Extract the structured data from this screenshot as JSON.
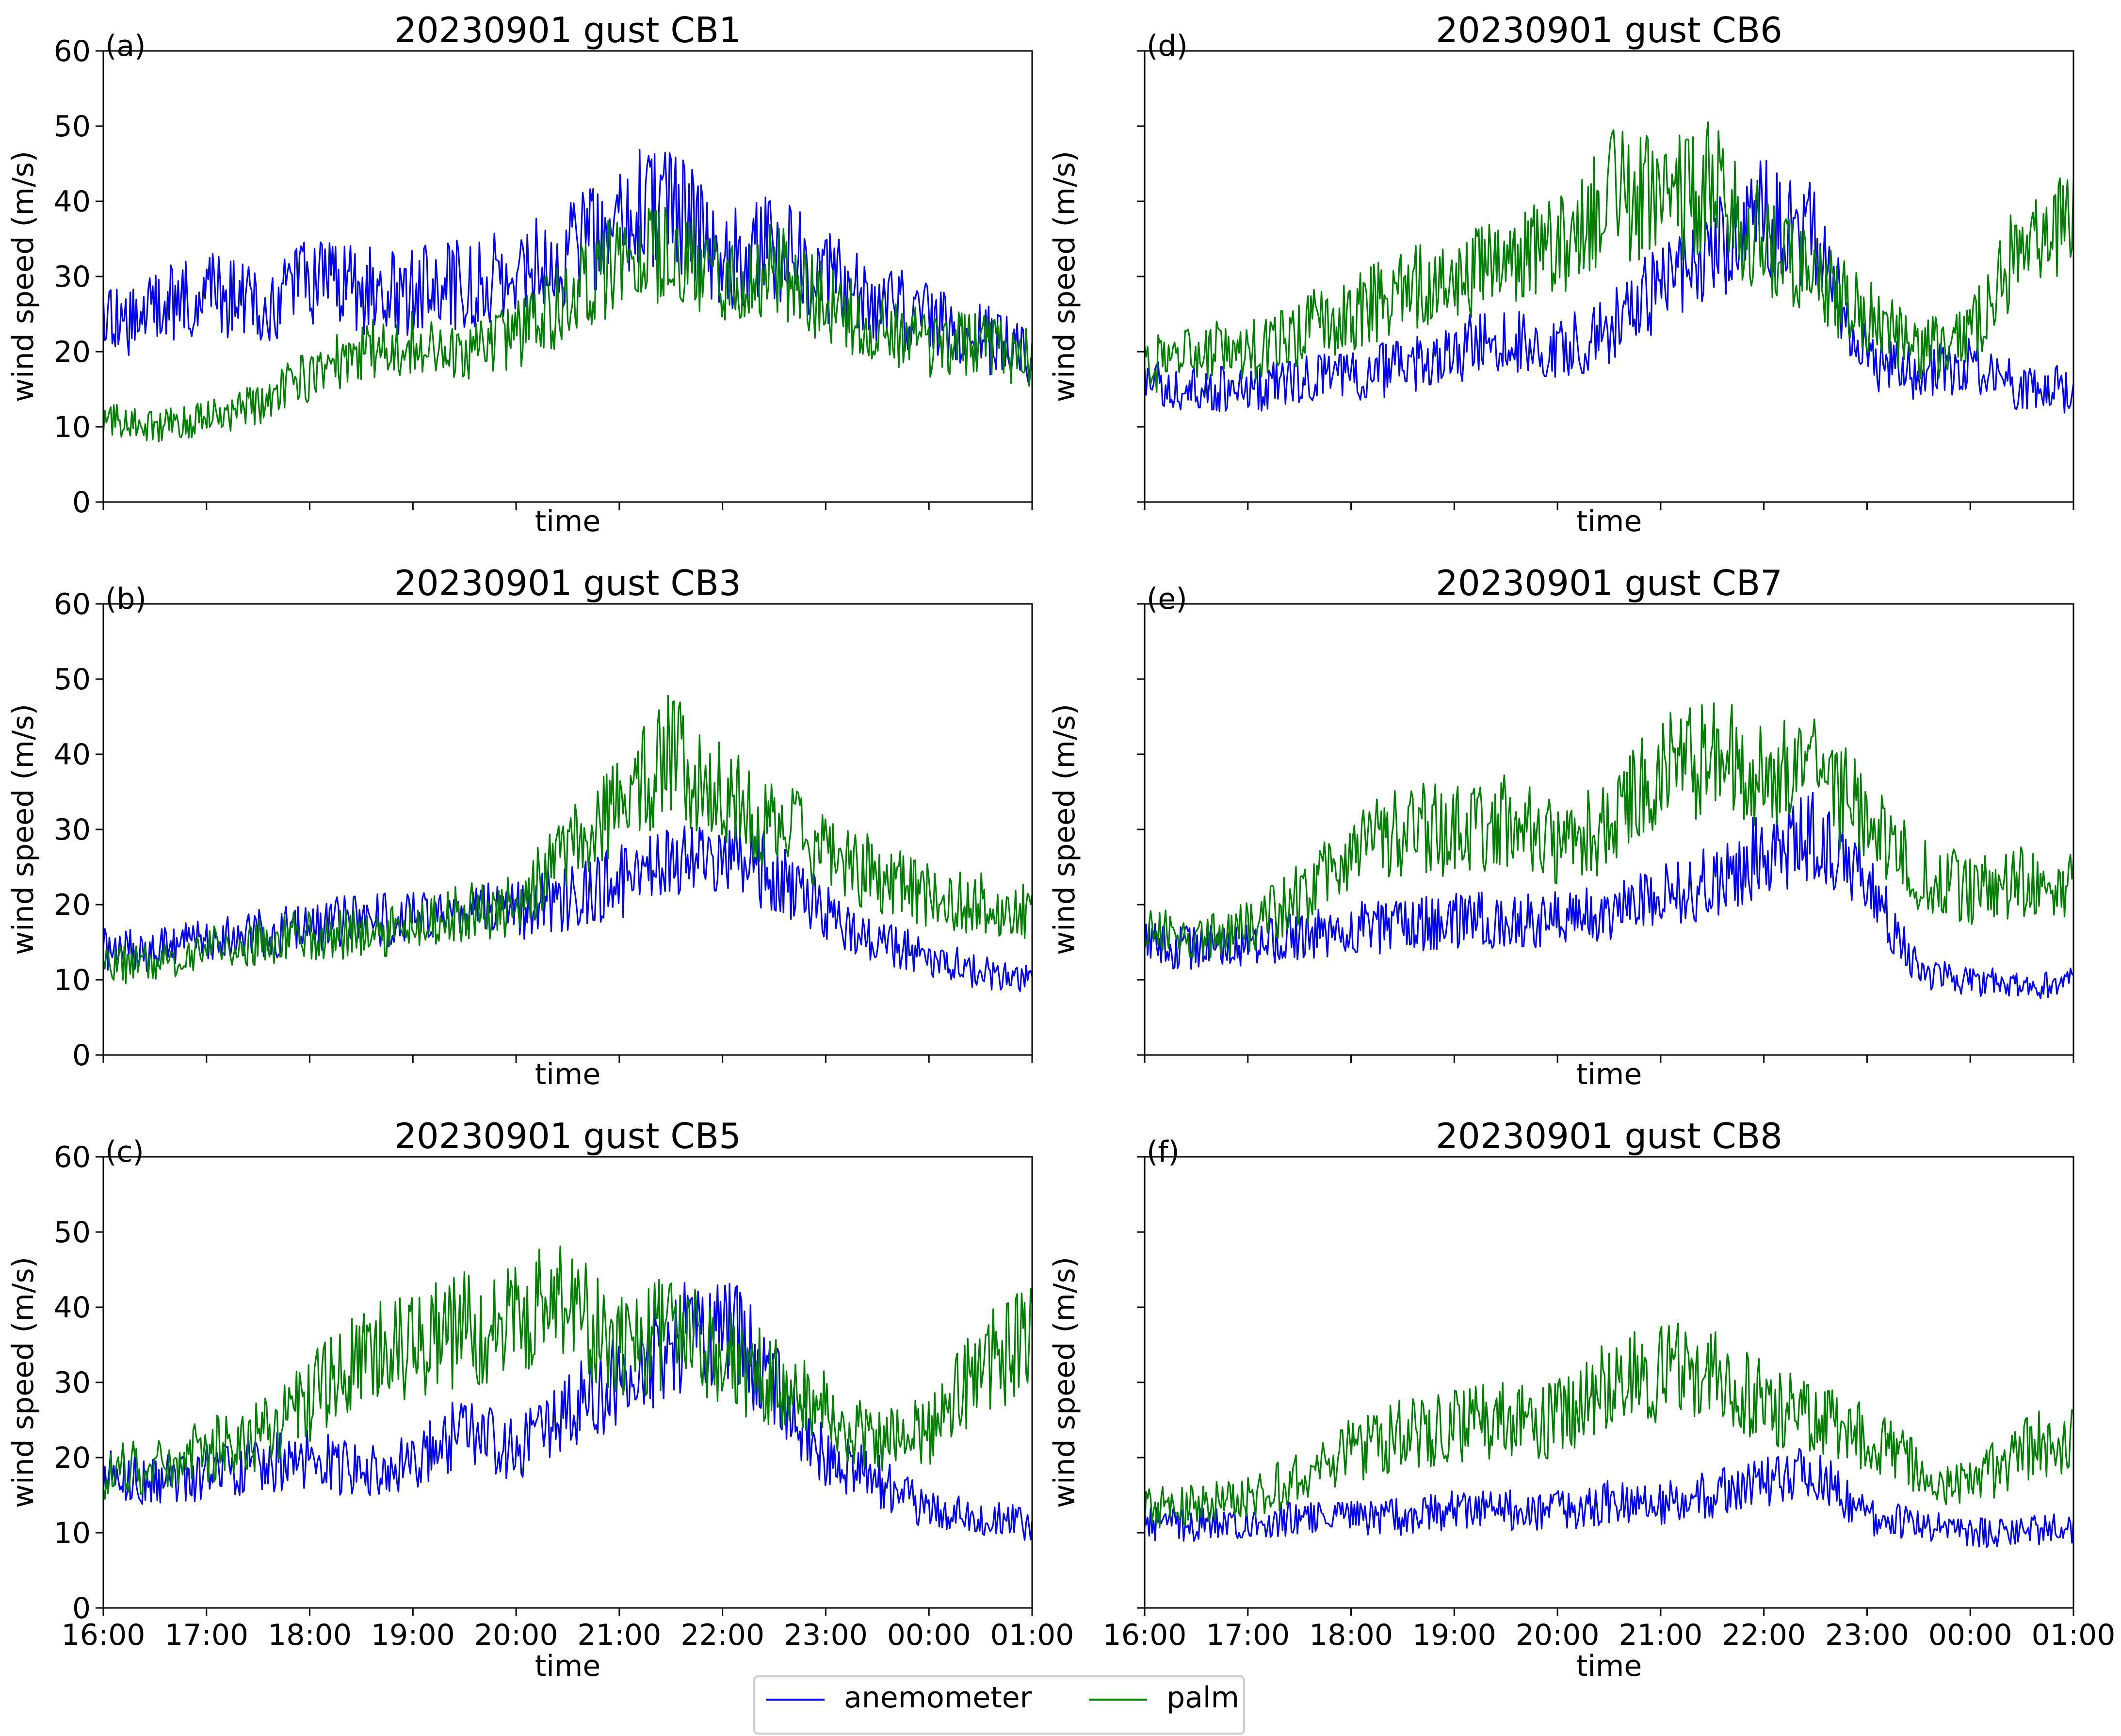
{
  "figure": {
    "legend": {
      "entries": [
        {
          "label": "anemometer",
          "color": "#0000ff"
        },
        {
          "label": "palm",
          "color": "#008000"
        }
      ],
      "placement": "bottom-center"
    }
  },
  "chart_data": [
    {
      "panel": "(a)",
      "type": "line",
      "title": "20230901 gust CB1",
      "xlabel": "time",
      "ylabel": "wind speed (m/s)",
      "ylim": [
        0,
        60
      ],
      "yticks": [
        "0",
        "10",
        "20",
        "30",
        "40",
        "50",
        "60"
      ],
      "xticks": [
        "16:00",
        "17:00",
        "18:00",
        "19:00",
        "20:00",
        "21:00",
        "22:00",
        "23:00",
        "00:00",
        "01:00"
      ],
      "show_xtick_labels": false,
      "show_ytick_labels": true,
      "x_hours": [
        0,
        0.5,
        1,
        1.5,
        2,
        2.5,
        3,
        3.5,
        4,
        4.5,
        5,
        5.5,
        6,
        6.5,
        7,
        7.5,
        8,
        8.5,
        9
      ],
      "series": [
        {
          "name": "anemometer",
          "color": "#0000ff",
          "values": [
            23,
            26,
            28,
            26,
            29,
            28,
            28,
            29,
            30,
            33,
            38,
            40,
            32,
            34,
            30,
            27,
            24,
            22,
            19
          ]
        },
        {
          "name": "palm",
          "color": "#008000",
          "values": [
            11,
            10,
            11,
            13,
            17,
            20,
            21,
            19,
            22,
            27,
            32,
            33,
            29,
            31,
            26,
            23,
            21,
            21,
            19
          ]
        }
      ]
    },
    {
      "panel": "(b)",
      "type": "line",
      "title": "20230901 gust CB3",
      "xlabel": "time",
      "ylabel": "wind speed (m/s)",
      "ylim": [
        0,
        60
      ],
      "yticks": [
        "0",
        "10",
        "20",
        "30",
        "40",
        "50",
        "60"
      ],
      "xticks": [
        "16:00",
        "17:00",
        "18:00",
        "19:00",
        "20:00",
        "21:00",
        "22:00",
        "23:00",
        "00:00",
        "01:00"
      ],
      "show_xtick_labels": false,
      "show_ytick_labels": true,
      "x_hours": [
        0,
        0.5,
        1,
        1.5,
        2,
        2.5,
        3,
        3.5,
        4,
        4.5,
        5,
        5.5,
        6,
        6.5,
        7,
        7.5,
        8,
        8.5,
        9
      ],
      "series": [
        {
          "name": "anemometer",
          "color": "#0000ff",
          "values": [
            14,
            14,
            15,
            16,
            17,
            18,
            18,
            19,
            19,
            21,
            23,
            25,
            27,
            24,
            19,
            15,
            13,
            11,
            10
          ]
        },
        {
          "name": "palm",
          "color": "#008000",
          "values": [
            12,
            12,
            14,
            15,
            16,
            16,
            17,
            19,
            20,
            27,
            34,
            40,
            34,
            31,
            27,
            24,
            21,
            20,
            19
          ]
        }
      ]
    },
    {
      "panel": "(c)",
      "type": "line",
      "title": "20230901 gust CB5",
      "xlabel": "time",
      "ylabel": "wind speed (m/s)",
      "ylim": [
        0,
        60
      ],
      "yticks": [
        "0",
        "10",
        "20",
        "30",
        "40",
        "50",
        "60"
      ],
      "xticks": [
        "16:00",
        "17:00",
        "18:00",
        "19:00",
        "20:00",
        "21:00",
        "22:00",
        "23:00",
        "00:00",
        "01:00"
      ],
      "show_xtick_labels": true,
      "show_ytick_labels": true,
      "x_hours": [
        0,
        0.5,
        1,
        1.5,
        2,
        2.5,
        3,
        3.5,
        4,
        4.5,
        5,
        5.5,
        6,
        6.5,
        7,
        7.5,
        8,
        8.5,
        9
      ],
      "series": [
        {
          "name": "anemometer",
          "color": "#0000ff",
          "values": [
            18,
            17,
            18,
            19,
            20,
            18,
            19,
            24,
            21,
            27,
            30,
            35,
            38,
            30,
            20,
            17,
            13,
            12,
            11
          ]
        },
        {
          "name": "palm",
          "color": "#008000",
          "values": [
            18,
            19,
            21,
            23,
            28,
            33,
            35,
            37,
            38,
            42,
            34,
            37,
            33,
            30,
            26,
            22,
            24,
            32,
            36
          ]
        }
      ]
    },
    {
      "panel": "(d)",
      "type": "line",
      "title": "20230901 gust CB6",
      "xlabel": "time",
      "ylabel": "wind speed (m/s)",
      "ylim": [
        0,
        60
      ],
      "yticks": [
        "0",
        "10",
        "20",
        "30",
        "40",
        "50",
        "60"
      ],
      "xticks": [
        "16:00",
        "17:00",
        "18:00",
        "19:00",
        "20:00",
        "21:00",
        "22:00",
        "23:00",
        "00:00",
        "01:00"
      ],
      "show_xtick_labels": false,
      "show_ytick_labels": false,
      "x_hours": [
        0,
        0.5,
        1,
        1.5,
        2,
        2.5,
        3,
        3.5,
        4,
        4.5,
        5,
        5.5,
        6,
        6.5,
        7,
        7.5,
        8,
        8.5,
        9
      ],
      "series": [
        {
          "name": "anemometer",
          "color": "#0000ff",
          "values": [
            16,
            15,
            15,
            16,
            17,
            18,
            20,
            22,
            20,
            23,
            29,
            33,
            38,
            35,
            19,
            17,
            18,
            15,
            15
          ]
        },
        {
          "name": "palm",
          "color": "#008000",
          "values": [
            18,
            20,
            20,
            23,
            25,
            28,
            30,
            31,
            34,
            41,
            40,
            42,
            34,
            29,
            25,
            20,
            22,
            35,
            38
          ]
        }
      ]
    },
    {
      "panel": "(e)",
      "type": "line",
      "title": "20230901 gust CB7",
      "xlabel": "time",
      "ylabel": "wind speed (m/s)",
      "ylim": [
        0,
        60
      ],
      "yticks": [
        "0",
        "10",
        "20",
        "30",
        "40",
        "50",
        "60"
      ],
      "xticks": [
        "16:00",
        "17:00",
        "18:00",
        "19:00",
        "20:00",
        "21:00",
        "22:00",
        "23:00",
        "00:00",
        "01:00"
      ],
      "show_xtick_labels": false,
      "show_ytick_labels": false,
      "x_hours": [
        0,
        0.5,
        1,
        1.5,
        2,
        2.5,
        3,
        3.5,
        4,
        4.5,
        5,
        5.5,
        6,
        6.5,
        7,
        7.5,
        8,
        8.5,
        9
      ],
      "series": [
        {
          "name": "anemometer",
          "color": "#0000ff",
          "values": [
            15,
            14,
            15,
            16,
            17,
            17,
            18,
            18,
            18,
            19,
            21,
            23,
            27,
            29,
            23,
            11,
            10,
            9,
            10
          ]
        },
        {
          "name": "palm",
          "color": "#008000",
          "values": [
            16,
            16,
            17,
            21,
            27,
            30,
            30,
            31,
            28,
            30,
            38,
            40,
            37,
            37,
            32,
            24,
            22,
            23,
            23
          ]
        }
      ]
    },
    {
      "panel": "(f)",
      "type": "line",
      "title": "20230901 gust CB8",
      "xlabel": "time",
      "ylabel": "wind speed (m/s)",
      "ylim": [
        0,
        60
      ],
      "yticks": [
        "0",
        "10",
        "20",
        "30",
        "40",
        "50",
        "60"
      ],
      "xticks": [
        "16:00",
        "17:00",
        "18:00",
        "19:00",
        "20:00",
        "21:00",
        "22:00",
        "23:00",
        "00:00",
        "01:00"
      ],
      "show_xtick_labels": true,
      "show_ytick_labels": false,
      "x_hours": [
        0,
        0.5,
        1,
        1.5,
        2,
        2.5,
        3,
        3.5,
        4,
        4.5,
        5,
        5.5,
        6,
        6.5,
        7,
        7.5,
        8,
        8.5,
        9
      ],
      "series": [
        {
          "name": "anemometer",
          "color": "#0000ff",
          "values": [
            11,
            11,
            11,
            12,
            12,
            12,
            13,
            13,
            13,
            14,
            14,
            15,
            17,
            18,
            12,
            11,
            10,
            10,
            11
          ]
        },
        {
          "name": "palm",
          "color": "#008000",
          "values": [
            13,
            14,
            15,
            17,
            21,
            23,
            24,
            25,
            25,
            30,
            31,
            32,
            27,
            25,
            23,
            19,
            16,
            21,
            23
          ]
        }
      ]
    }
  ]
}
